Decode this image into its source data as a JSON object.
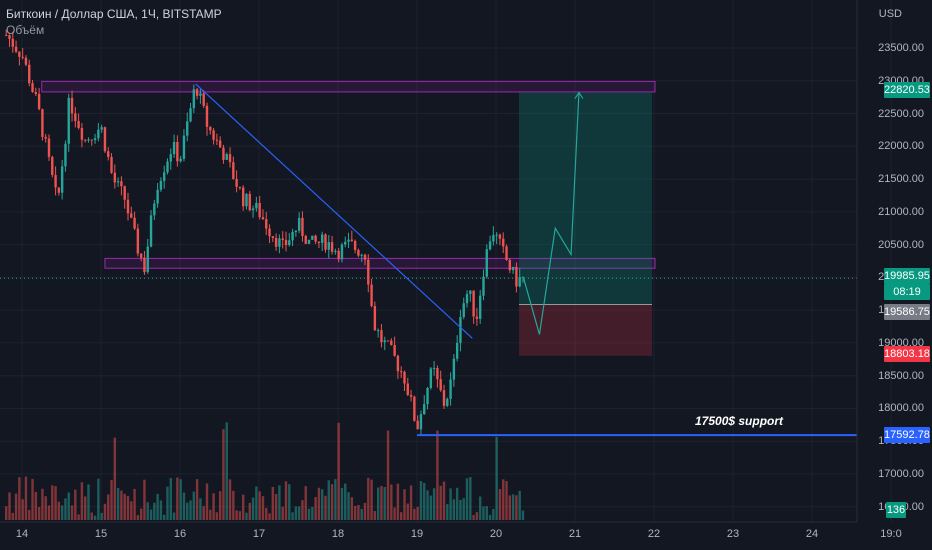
{
  "header": {
    "title": "Биткоин / Доллар США, 1Ч, BITSTAMP",
    "indicator": "Объём"
  },
  "currency": "USD",
  "y_ticks": [
    "23500.00",
    "23000.00",
    "22500.00",
    "22000.00",
    "21500.00",
    "21000.00",
    "20500.00",
    "20000.00",
    "19500.00",
    "19000.00",
    "18500.00",
    "18000.00",
    "17500.00",
    "17000.00",
    "16500.00"
  ],
  "x_ticks": [
    "14",
    "15",
    "16",
    "17",
    "18",
    "19",
    "20",
    "21",
    "22",
    "23",
    "24",
    "19:0"
  ],
  "badges": {
    "target": "22820.53",
    "last": "19985.95",
    "countdown": "08:19",
    "entry": "19586.75",
    "stop": "18803.18",
    "support": "17592.78",
    "volume": "136"
  },
  "annotation": "17500$ support",
  "colors": {
    "up": "#26a69a",
    "down": "#ef5350",
    "zone": "#9c27b0",
    "trend": "#2962ff",
    "bg": "#131722"
  },
  "chart_data": {
    "type": "candlestick",
    "title": "Биткоин / Доллар США, 1Ч, BITSTAMP",
    "x_axis": "date (day of month)",
    "y_axis": "price USD",
    "ylim": [
      16300,
      24100
    ],
    "price_path": [
      [
        13.8,
        23700
      ],
      [
        14.0,
        23400
      ],
      [
        14.2,
        22600
      ],
      [
        14.45,
        21100
      ],
      [
        14.6,
        22700
      ],
      [
        14.8,
        22100
      ],
      [
        15.0,
        22300
      ],
      [
        15.15,
        21500
      ],
      [
        15.3,
        21200
      ],
      [
        15.45,
        20500
      ],
      [
        15.55,
        20150
      ],
      [
        15.7,
        21400
      ],
      [
        15.9,
        22000
      ],
      [
        16.0,
        21800
      ],
      [
        16.2,
        22950
      ],
      [
        16.35,
        22300
      ],
      [
        16.55,
        21900
      ],
      [
        16.8,
        21200
      ],
      [
        17.0,
        21000
      ],
      [
        17.15,
        20700
      ],
      [
        17.3,
        20450
      ],
      [
        17.5,
        20800
      ],
      [
        17.65,
        20500
      ],
      [
        17.85,
        20550
      ],
      [
        18.0,
        20400
      ],
      [
        18.15,
        20500
      ],
      [
        18.35,
        20350
      ],
      [
        18.45,
        19300
      ],
      [
        18.55,
        19050
      ],
      [
        18.7,
        18800
      ],
      [
        18.85,
        18450
      ],
      [
        19.0,
        17700
      ],
      [
        19.1,
        18200
      ],
      [
        19.2,
        18600
      ],
      [
        19.35,
        18050
      ],
      [
        19.45,
        18500
      ],
      [
        19.55,
        19500
      ],
      [
        19.65,
        19800
      ],
      [
        19.75,
        19350
      ],
      [
        19.85,
        20200
      ],
      [
        19.95,
        20750
      ],
      [
        20.1,
        20350
      ],
      [
        20.25,
        19950
      ],
      [
        20.35,
        19985
      ]
    ],
    "zones": [
      {
        "from": 14.25,
        "to": 21.0,
        "low": 22830,
        "high": 22990
      },
      {
        "from": 15.05,
        "to": 21.0,
        "low": 20140,
        "high": 20290
      }
    ],
    "trendline": {
      "x": [
        16.2,
        19.7
      ],
      "y": [
        22950,
        19070
      ]
    },
    "position": {
      "entry": 19586.75,
      "target": 22820.53,
      "stop": 18803.18,
      "from": 20.3,
      "to": 21.0
    },
    "projection": {
      "x": [
        20.35,
        20.55,
        20.75,
        20.95,
        21.05
      ],
      "y": [
        19985.95,
        19130,
        20750,
        20350,
        22820.53
      ]
    },
    "support": {
      "value": 17592.78,
      "from": 19.0,
      "label": "17500$ support"
    },
    "last_price": 19985.95,
    "volume_bars": 260
  }
}
